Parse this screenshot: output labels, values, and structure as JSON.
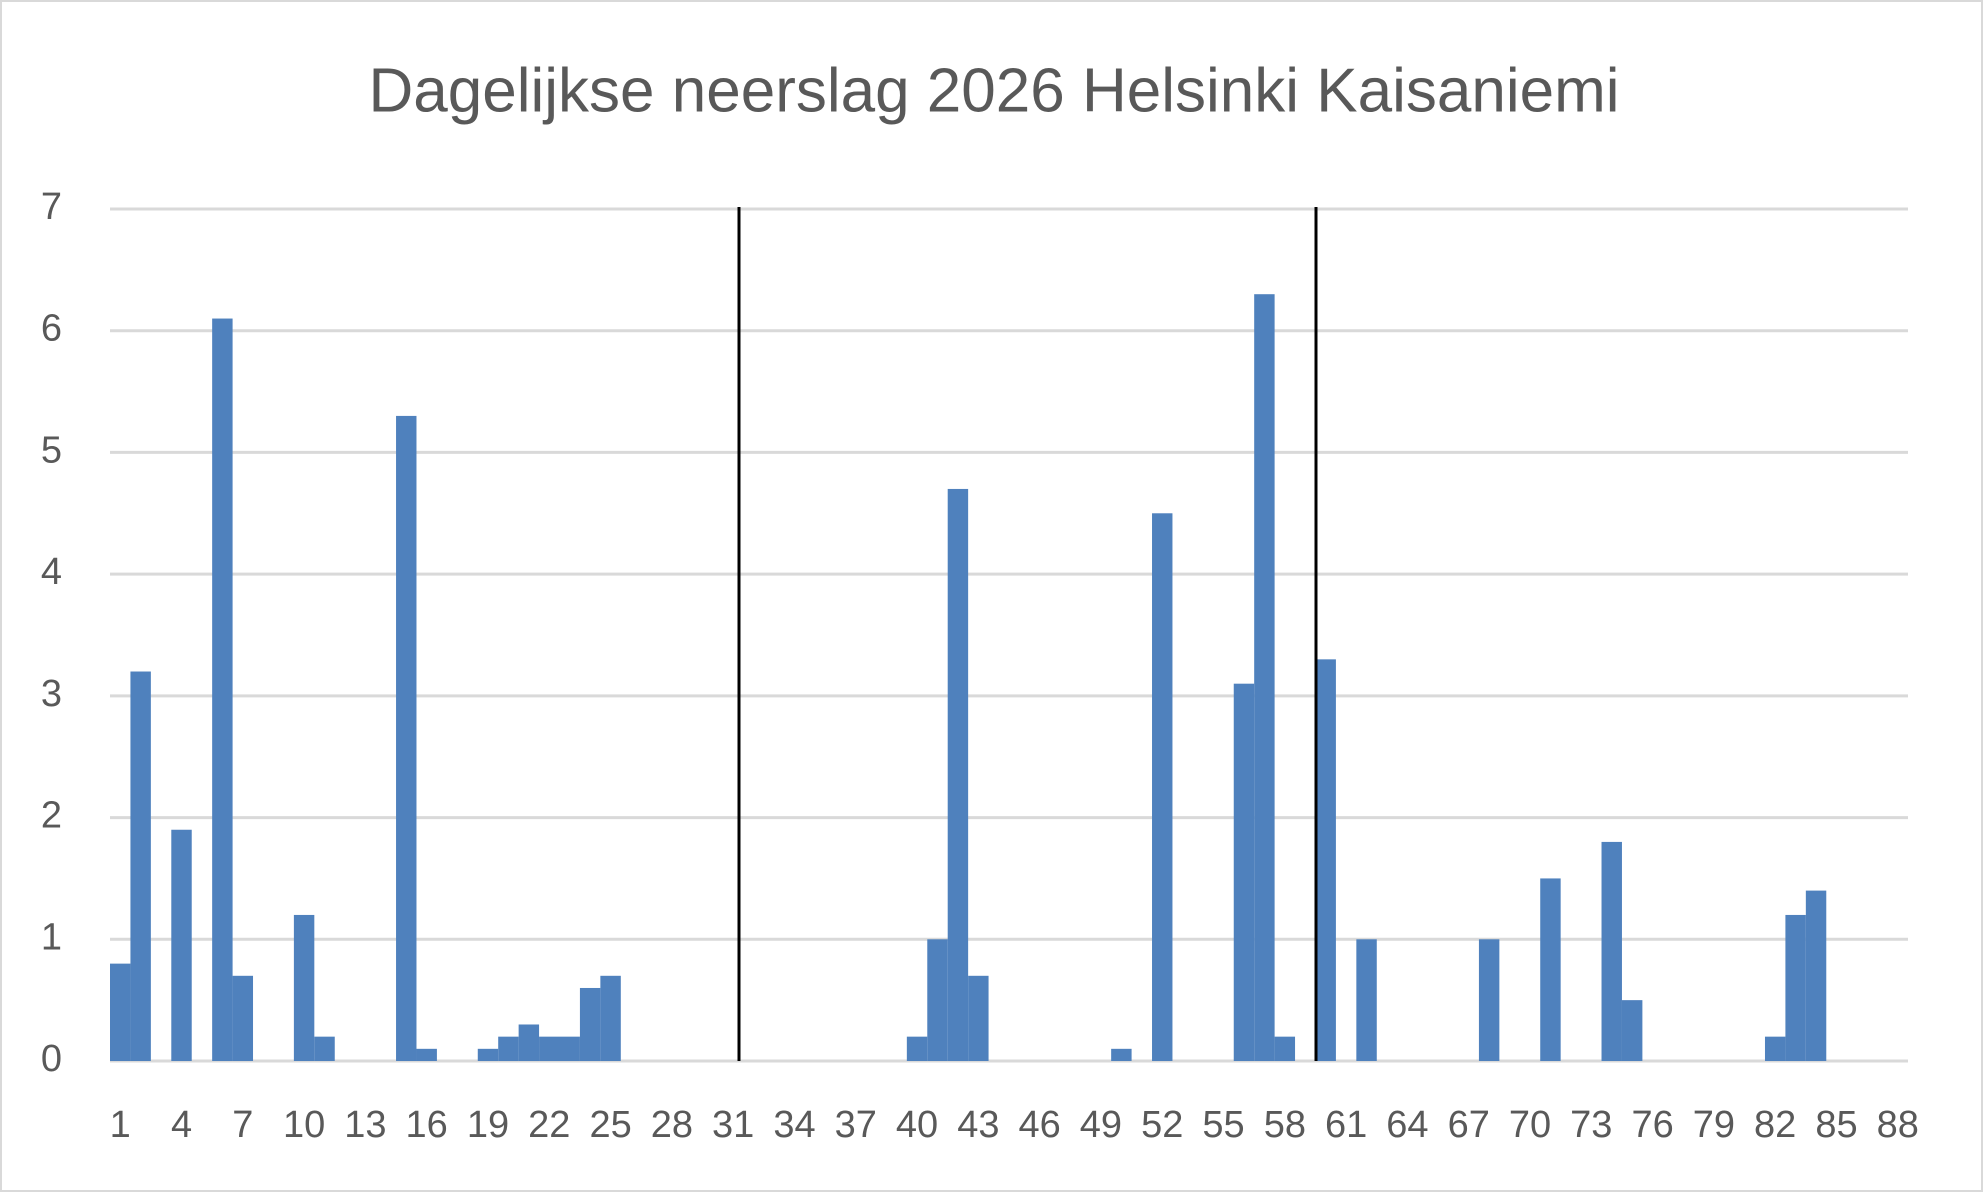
{
  "chart_data": {
    "type": "bar",
    "title": "Dagelijkse neerslag 2026 Helsinki Kaisaniemi",
    "categories": [
      "1",
      null,
      null,
      "4",
      null,
      null,
      "7",
      null,
      null,
      "10",
      null,
      null,
      "13",
      null,
      null,
      "16",
      null,
      null,
      "19",
      null,
      null,
      "22",
      null,
      null,
      "25",
      null,
      null,
      "28",
      null,
      null,
      "31",
      null,
      null,
      "34",
      null,
      null,
      "37",
      null,
      null,
      "40",
      null,
      null,
      "43",
      null,
      null,
      "46",
      null,
      null,
      "49",
      null,
      null,
      "52",
      null,
      null,
      "55",
      null,
      null,
      "58",
      null,
      null,
      "61",
      null,
      null,
      "64",
      null,
      null,
      "67",
      null,
      null,
      "70",
      null,
      null,
      "73",
      null,
      null,
      "76",
      null,
      null,
      "79",
      null,
      null,
      "82",
      null,
      null,
      "85",
      null,
      null,
      "88"
    ],
    "values": [
      0.8,
      3.2,
      0,
      1.9,
      0,
      6.1,
      0.7,
      0,
      0,
      1.2,
      0.2,
      0,
      0,
      0,
      5.3,
      0.1,
      0,
      0,
      0.1,
      0.2,
      0.3,
      0.2,
      0.2,
      0.6,
      0.7,
      0,
      0,
      0,
      0,
      0,
      0,
      0,
      0,
      0,
      0,
      0,
      0,
      0,
      0,
      0.2,
      1,
      4.7,
      0.7,
      0,
      0,
      0,
      0,
      0,
      0,
      0.1,
      0,
      4.5,
      0,
      0,
      0,
      3.1,
      6.3,
      0.2,
      0,
      3.3,
      0,
      1,
      0,
      0,
      0,
      0,
      0,
      1,
      0,
      0,
      1.5,
      0,
      0,
      1.8,
      0.5,
      0,
      0,
      0,
      0,
      0,
      0,
      0.2,
      1.2,
      1.4,
      0,
      0,
      0,
      0
    ],
    "color": "#4f81bd",
    "ylim": [
      0,
      7
    ],
    "yticks": [
      0,
      1,
      2,
      3,
      4,
      5,
      6,
      7
    ],
    "grid": true
  }
}
